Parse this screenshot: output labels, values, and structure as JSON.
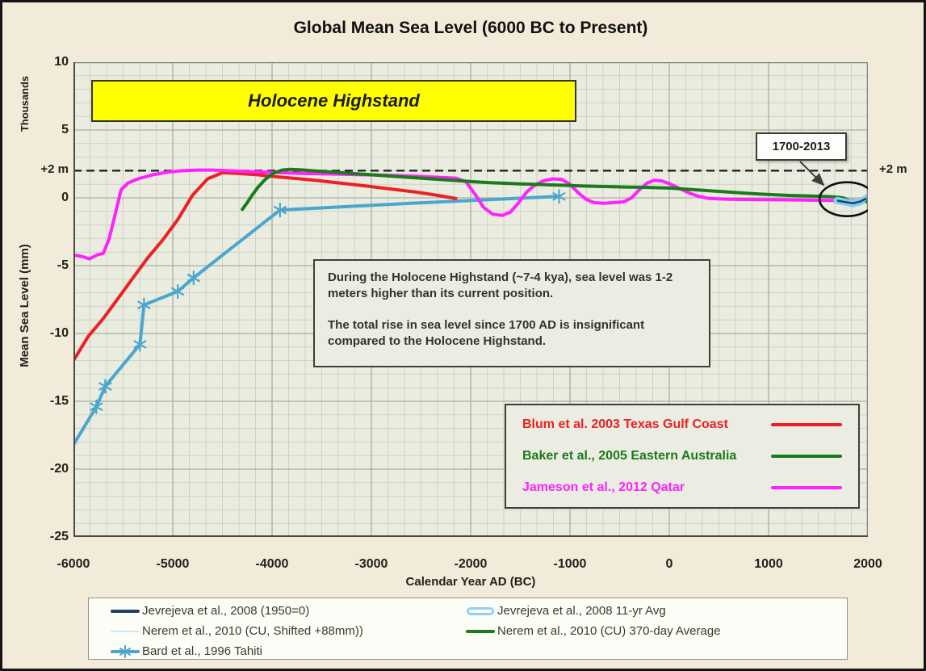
{
  "title": "Global Mean Sea Level (6000 BC to Present)",
  "banner": {
    "label": "Holocene Highstand"
  },
  "annotation": {
    "para1": "During the Holocene Highstand (~7-4 kya), sea level was 1-2 meters higher than its current position.",
    "para2": "The total rise in sea level since 1700 AD is insignificant compared to the Holocene Highstand."
  },
  "callout": {
    "label": "1700-2013"
  },
  "ref_line": {
    "value": 2,
    "left_label": "+2 m",
    "right_label": "+2 m"
  },
  "axes": {
    "x_title": "Calendar Year AD (BC)",
    "y_title": "Mean Sea Level (mm)",
    "y_secondary_title": "Thousands",
    "x_tick_labels": [
      "-6000",
      "-5000",
      "-4000",
      "-3000",
      "-2000",
      "-1000",
      "0",
      "1000",
      "2000"
    ],
    "x_tick_values": [
      -6000,
      -5000,
      -4000,
      -3000,
      -2000,
      -1000,
      0,
      1000,
      2000
    ],
    "y_tick_labels": [
      "10",
      "5",
      "0",
      "-5",
      "-10",
      "-15",
      "-20",
      "-25"
    ],
    "y_tick_values": [
      10,
      5,
      0,
      -5,
      -10,
      -15,
      -20,
      -25
    ]
  },
  "inner_legend": [
    {
      "label": "Blum et al. 2003 Texas Gulf Coast",
      "color": "#ed2024"
    },
    {
      "label": "Baker et al., 2005 Eastern Australia",
      "color": "#1c7a1c"
    },
    {
      "label": "Jameson et al., 2012 Qatar",
      "color": "#ff22ff"
    }
  ],
  "bottom_legend": {
    "col1": [
      {
        "label": "Jevrejeva et al., 2008 (1950=0)",
        "color": "#1e3f66",
        "marker": "line-thick"
      },
      {
        "label": "Nerem et al., 2010 (CU, Shifted +88mm))",
        "color": "#c8e6f4",
        "marker": "line-thin"
      },
      {
        "label": "Bard et al., 1996 Tahiti",
        "color": "#4ba6cf",
        "marker": "line-asterisk"
      }
    ],
    "col2": [
      {
        "label": "Jevrejeva et al., 2008 11-yr Avg",
        "color": "#8ed4f0",
        "marker": "capsule"
      },
      {
        "label": "Nerem et al., 2010 (CU) 370-day Average",
        "color": "#1c7a1c",
        "marker": "line"
      }
    ]
  },
  "chart_data": {
    "type": "line",
    "title": "Global Mean Sea Level (6000 BC to Present)",
    "xlabel": "Calendar Year AD (BC)",
    "ylabel": "Mean Sea Level (mm), Thousands",
    "xlim": [
      -6000,
      2000
    ],
    "ylim": [
      -25,
      10
    ],
    "grid": true,
    "reference_line_y": 2,
    "ellipse_annotation": {
      "x": 1790,
      "y": -0.1,
      "label": "1700-2013"
    },
    "series": [
      {
        "name": "Bard et al., 1996 Tahiti",
        "color": "#4ba6cf",
        "width": 4,
        "marker": "asterisk",
        "points": [
          [
            -6000,
            -18.2
          ],
          [
            -5770,
            -15.4
          ],
          [
            -5680,
            -13.9
          ],
          [
            -5330,
            -10.8
          ],
          [
            -5290,
            -7.9
          ],
          [
            -4950,
            -6.9
          ],
          [
            -4790,
            -5.9
          ],
          [
            -3920,
            -0.9
          ],
          [
            -2600,
            -0.4
          ],
          [
            -1110,
            0.1
          ]
        ],
        "marker_points": [
          [
            -5770,
            -15.4
          ],
          [
            -5680,
            -13.9
          ],
          [
            -5330,
            -10.8
          ],
          [
            -5290,
            -7.9
          ],
          [
            -4950,
            -6.9
          ],
          [
            -4790,
            -5.9
          ],
          [
            -3920,
            -0.9
          ],
          [
            -1110,
            0.1
          ]
        ]
      },
      {
        "name": "Blum et al. 2003 Texas Gulf Coast",
        "color": "#ed2024",
        "width": 4,
        "points": [
          [
            -6000,
            -12
          ],
          [
            -5850,
            -10.2
          ],
          [
            -5700,
            -8.9
          ],
          [
            -5550,
            -7.4
          ],
          [
            -5400,
            -5.9
          ],
          [
            -5250,
            -4.4
          ],
          [
            -5100,
            -3.1
          ],
          [
            -4950,
            -1.6
          ],
          [
            -4800,
            0.2
          ],
          [
            -4650,
            1.4
          ],
          [
            -4500,
            1.85
          ],
          [
            -4350,
            1.8
          ],
          [
            -4150,
            1.7
          ],
          [
            -3950,
            1.55
          ],
          [
            -3750,
            1.42
          ],
          [
            -3550,
            1.28
          ],
          [
            -3350,
            1.12
          ],
          [
            -3150,
            0.95
          ],
          [
            -2950,
            0.78
          ],
          [
            -2750,
            0.6
          ],
          [
            -2550,
            0.42
          ],
          [
            -2350,
            0.2
          ],
          [
            -2150,
            -0.05
          ]
        ]
      },
      {
        "name": "Jameson et al., 2012 Qatar",
        "color": "#ff22ff",
        "width": 4,
        "points": [
          [
            -6000,
            -4.2
          ],
          [
            -5900,
            -4.35
          ],
          [
            -5840,
            -4.5
          ],
          [
            -5760,
            -4.2
          ],
          [
            -5700,
            -4.1
          ],
          [
            -5640,
            -3.0
          ],
          [
            -5580,
            -1.2
          ],
          [
            -5520,
            0.6
          ],
          [
            -5450,
            1.1
          ],
          [
            -5350,
            1.4
          ],
          [
            -5200,
            1.7
          ],
          [
            -5050,
            1.9
          ],
          [
            -4900,
            2.0
          ],
          [
            -4750,
            2.05
          ],
          [
            -4600,
            2.05
          ],
          [
            -4450,
            2.0
          ],
          [
            -4300,
            1.95
          ],
          [
            -4100,
            1.9
          ],
          [
            -3900,
            1.85
          ],
          [
            -3700,
            1.8
          ],
          [
            -3500,
            1.77
          ],
          [
            -3300,
            1.74
          ],
          [
            -3100,
            1.7
          ],
          [
            -2900,
            1.67
          ],
          [
            -2700,
            1.63
          ],
          [
            -2500,
            1.57
          ],
          [
            -2300,
            1.5
          ],
          [
            -2150,
            1.45
          ],
          [
            -2050,
            1.2
          ],
          [
            -1950,
            0.2
          ],
          [
            -1870,
            -0.7
          ],
          [
            -1780,
            -1.2
          ],
          [
            -1680,
            -1.3
          ],
          [
            -1600,
            -1.05
          ],
          [
            -1520,
            -0.4
          ],
          [
            -1440,
            0.4
          ],
          [
            -1360,
            0.9
          ],
          [
            -1270,
            1.25
          ],
          [
            -1170,
            1.4
          ],
          [
            -1080,
            1.35
          ],
          [
            -1000,
            1.0
          ],
          [
            -920,
            0.4
          ],
          [
            -840,
            -0.1
          ],
          [
            -760,
            -0.35
          ],
          [
            -660,
            -0.4
          ],
          [
            -560,
            -0.35
          ],
          [
            -460,
            -0.3
          ],
          [
            -380,
            0.0
          ],
          [
            -300,
            0.6
          ],
          [
            -220,
            1.1
          ],
          [
            -150,
            1.3
          ],
          [
            -80,
            1.25
          ],
          [
            0,
            1.05
          ],
          [
            100,
            0.7
          ],
          [
            200,
            0.35
          ],
          [
            300,
            0.1
          ],
          [
            400,
            -0.05
          ],
          [
            600,
            -0.1
          ],
          [
            900,
            -0.13
          ],
          [
            1200,
            -0.15
          ],
          [
            1500,
            -0.18
          ],
          [
            1800,
            -0.22
          ],
          [
            1960,
            -0.18
          ]
        ]
      },
      {
        "name": "Baker et al., 2005 Eastern Australia",
        "color": "#1c7a1c",
        "width": 4,
        "points": [
          [
            -4300,
            -0.85
          ],
          [
            -4250,
            -0.35
          ],
          [
            -4200,
            0.2
          ],
          [
            -4140,
            0.8
          ],
          [
            -4070,
            1.35
          ],
          [
            -3990,
            1.8
          ],
          [
            -3900,
            2.05
          ],
          [
            -3820,
            2.1
          ],
          [
            -3720,
            2.07
          ],
          [
            -3600,
            2.0
          ],
          [
            -3450,
            1.93
          ],
          [
            -3300,
            1.85
          ],
          [
            -3150,
            1.77
          ],
          [
            -3000,
            1.7
          ],
          [
            -2850,
            1.62
          ],
          [
            -2700,
            1.55
          ],
          [
            -2550,
            1.47
          ],
          [
            -2400,
            1.4
          ],
          [
            -2250,
            1.32
          ],
          [
            -2100,
            1.25
          ],
          [
            -1950,
            1.18
          ],
          [
            -1800,
            1.12
          ],
          [
            -1650,
            1.07
          ],
          [
            -1500,
            1.03
          ],
          [
            -1350,
            1.0
          ],
          [
            -1200,
            0.95
          ],
          [
            -1050,
            0.92
          ],
          [
            -900,
            0.88
          ],
          [
            -750,
            0.85
          ],
          [
            -600,
            0.83
          ],
          [
            -450,
            0.8
          ],
          [
            -300,
            0.78
          ],
          [
            -150,
            0.75
          ],
          [
            0,
            0.72
          ],
          [
            150,
            0.65
          ],
          [
            300,
            0.57
          ],
          [
            450,
            0.5
          ],
          [
            600,
            0.42
          ],
          [
            750,
            0.35
          ],
          [
            900,
            0.28
          ],
          [
            1050,
            0.23
          ],
          [
            1200,
            0.18
          ],
          [
            1350,
            0.15
          ],
          [
            1500,
            0.12
          ],
          [
            1650,
            0.08
          ],
          [
            1750,
            0.0
          ],
          [
            1830,
            -0.25
          ],
          [
            1900,
            -0.38
          ],
          [
            1950,
            -0.3
          ],
          [
            2000,
            -0.15
          ]
        ]
      },
      {
        "name": "Jevrejeva et al., 2008 11-yr Avg",
        "color": "#7fd0f0",
        "width": 9,
        "points": [
          [
            1690,
            -0.2
          ],
          [
            1760,
            -0.3
          ],
          [
            1850,
            -0.42
          ],
          [
            1920,
            -0.3
          ],
          [
            1970,
            -0.12
          ],
          [
            2010,
            0.05
          ]
        ]
      },
      {
        "name": "Jevrejeva et al., 2008 (1950=0)",
        "color": "#1e3f66",
        "width": 2.5,
        "points": [
          [
            1700,
            -0.22
          ],
          [
            1780,
            -0.32
          ],
          [
            1850,
            -0.4
          ],
          [
            1920,
            -0.28
          ],
          [
            1970,
            -0.1
          ],
          [
            2008,
            0.02
          ]
        ]
      },
      {
        "name": "Nerem et al., 2010 (CU, Shifted +88mm))",
        "color": "#c8e6f4",
        "width": 2,
        "points": [
          [
            1993,
            -0.02
          ],
          [
            2013,
            0.08
          ]
        ]
      },
      {
        "name": "Nerem et al., 2010 (CU) 370-day Average",
        "color": "#1c7a1c",
        "width": 3,
        "points": [
          [
            1985,
            -0.32
          ],
          [
            2000,
            -0.18
          ],
          [
            2013,
            -0.06
          ]
        ]
      }
    ]
  },
  "colors": {
    "page_background": "#f3ebd9",
    "plot_background": "#e9ecdf",
    "grid_minor": "#cdd3c4",
    "grid_major": "#a7b0a0",
    "axis": "#4a4a44",
    "banner_fill": "#ffff00"
  }
}
